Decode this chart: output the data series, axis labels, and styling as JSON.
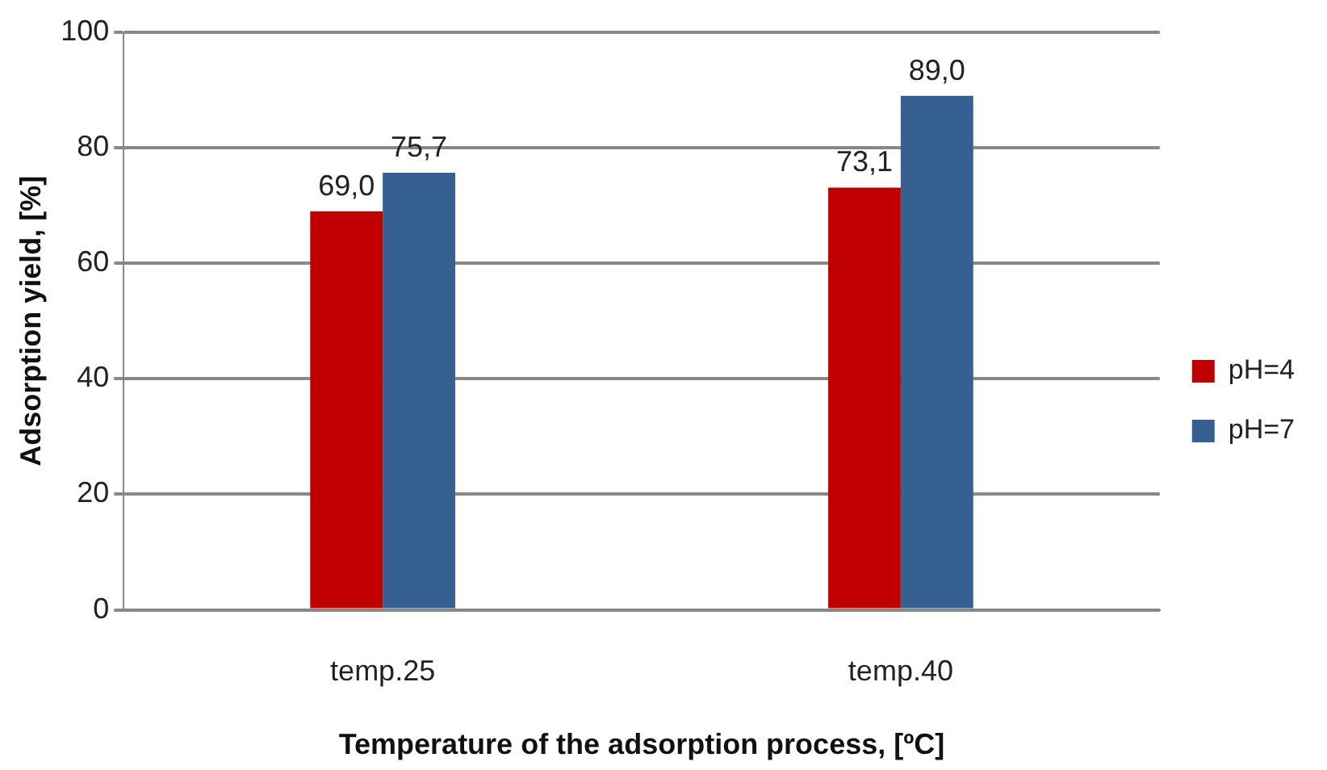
{
  "chart_data": {
    "type": "bar",
    "xlabel": "Temperature of the adsorption process, [ºC]",
    "ylabel": "Adsorption yield, [%]",
    "categories": [
      "temp.25",
      "temp.40"
    ],
    "series": [
      {
        "name": "pH=4",
        "color": "#c00000",
        "values": [
          69.0,
          73.1
        ],
        "value_labels": [
          "69,0",
          "73,1"
        ]
      },
      {
        "name": "pH=7",
        "color": "#366092",
        "values": [
          75.7,
          89.0
        ],
        "value_labels": [
          "75,7",
          "89,0"
        ]
      }
    ],
    "ylim": [
      0,
      100
    ],
    "yticks": [
      0,
      20,
      40,
      60,
      80,
      100
    ],
    "grid": "y",
    "legend": "right"
  }
}
